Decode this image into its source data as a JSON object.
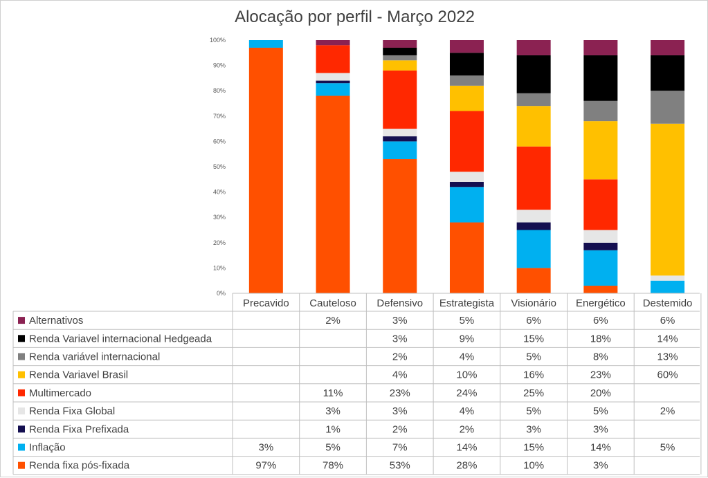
{
  "chart_data": {
    "type": "bar",
    "stacked": true,
    "title": "Alocação por perfil - Março 2022",
    "categories": [
      "Precavido",
      "Cauteloso",
      "Defensivo",
      "Estrategista",
      "Visionário",
      "Energético",
      "Destemido"
    ],
    "y_ticks": [
      "0%",
      "10%",
      "20%",
      "30%",
      "40%",
      "50%",
      "60%",
      "70%",
      "80%",
      "90%",
      "100%"
    ],
    "ylim": [
      0,
      100
    ],
    "grid": false,
    "legend_placement": "data-table-bottom",
    "series": [
      {
        "name": "Renda fixa pós-fixada",
        "color": "#FF5000",
        "values": [
          97,
          78,
          53,
          28,
          10,
          3,
          null
        ],
        "labels": [
          "97%",
          "78%",
          "53%",
          "28%",
          "10%",
          "3%",
          ""
        ]
      },
      {
        "name": "Inflação",
        "color": "#00B0F0",
        "values": [
          3,
          5,
          7,
          14,
          15,
          14,
          5
        ],
        "labels": [
          "3%",
          "5%",
          "7%",
          "14%",
          "15%",
          "14%",
          "5%"
        ]
      },
      {
        "name": "Renda Fixa Prefixada",
        "color": "#140F50",
        "values": [
          null,
          1,
          2,
          2,
          3,
          3,
          null
        ],
        "labels": [
          "",
          "1%",
          "2%",
          "2%",
          "3%",
          "3%",
          ""
        ]
      },
      {
        "name": "Renda Fixa Global",
        "color": "#E6E6E6",
        "values": [
          null,
          3,
          3,
          4,
          5,
          5,
          2
        ],
        "labels": [
          "",
          "3%",
          "3%",
          "4%",
          "5%",
          "5%",
          "2%"
        ]
      },
      {
        "name": "Multimercado",
        "color": "#FF2800",
        "values": [
          null,
          11,
          23,
          24,
          25,
          20,
          null
        ],
        "labels": [
          "",
          "11%",
          "23%",
          "24%",
          "25%",
          "20%",
          ""
        ]
      },
      {
        "name": "Renda Variavel Brasil",
        "color": "#FFC000",
        "values": [
          null,
          null,
          4,
          10,
          16,
          23,
          60
        ],
        "labels": [
          "",
          "",
          "4%",
          "10%",
          "16%",
          "23%",
          "60%"
        ]
      },
      {
        "name": "Renda variável internacional",
        "color": "#808080",
        "values": [
          null,
          null,
          2,
          4,
          5,
          8,
          13
        ],
        "labels": [
          "",
          "",
          "2%",
          "4%",
          "5%",
          "8%",
          "13%"
        ]
      },
      {
        "name": "Renda Variavel internacional Hedgeada",
        "color": "#000000",
        "values": [
          null,
          null,
          3,
          9,
          15,
          18,
          14
        ],
        "labels": [
          "",
          "",
          "3%",
          "9%",
          "15%",
          "18%",
          "14%"
        ]
      },
      {
        "name": "Alternativos",
        "color": "#8B2252",
        "values": [
          null,
          2,
          3,
          5,
          6,
          6,
          6
        ],
        "labels": [
          "",
          "2%",
          "3%",
          "5%",
          "6%",
          "6%",
          "6%"
        ]
      }
    ]
  }
}
